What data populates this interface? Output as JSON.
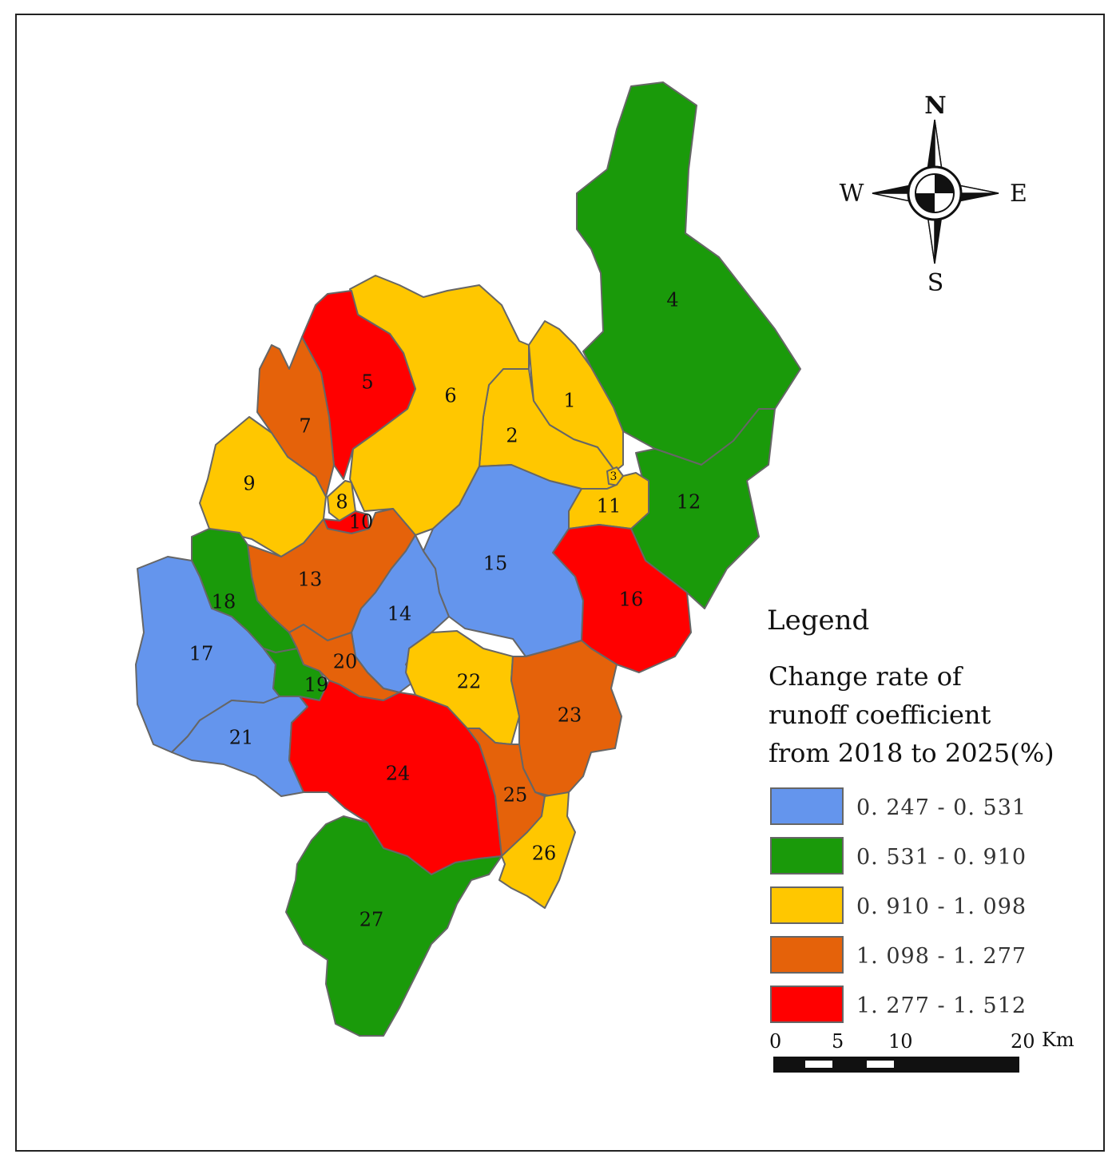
{
  "compass": {
    "north": "N",
    "south": "S",
    "east": "E",
    "west": "W"
  },
  "regions": [
    {
      "id": "1",
      "label": "1",
      "class_index": 2
    },
    {
      "id": "2",
      "label": "2",
      "class_index": 2
    },
    {
      "id": "3",
      "label": "3",
      "class_index": 2
    },
    {
      "id": "4",
      "label": "4",
      "class_index": 1
    },
    {
      "id": "5",
      "label": "5",
      "class_index": 4
    },
    {
      "id": "6",
      "label": "6",
      "class_index": 2
    },
    {
      "id": "7",
      "label": "7",
      "class_index": 3
    },
    {
      "id": "8",
      "label": "8",
      "class_index": 2
    },
    {
      "id": "9",
      "label": "9",
      "class_index": 2
    },
    {
      "id": "10",
      "label": "10",
      "class_index": 4
    },
    {
      "id": "11",
      "label": "11",
      "class_index": 2
    },
    {
      "id": "12",
      "label": "12",
      "class_index": 1
    },
    {
      "id": "13",
      "label": "13",
      "class_index": 3
    },
    {
      "id": "14",
      "label": "14",
      "class_index": 0
    },
    {
      "id": "15",
      "label": "15",
      "class_index": 0
    },
    {
      "id": "16",
      "label": "16",
      "class_index": 4
    },
    {
      "id": "17",
      "label": "17",
      "class_index": 0
    },
    {
      "id": "18",
      "label": "18",
      "class_index": 1
    },
    {
      "id": "19",
      "label": "19",
      "class_index": 1
    },
    {
      "id": "20",
      "label": "20",
      "class_index": 3
    },
    {
      "id": "21",
      "label": "21",
      "class_index": 0
    },
    {
      "id": "22",
      "label": "22",
      "class_index": 2
    },
    {
      "id": "23",
      "label": "23",
      "class_index": 3
    },
    {
      "id": "24",
      "label": "24",
      "class_index": 4
    },
    {
      "id": "25",
      "label": "25",
      "class_index": 3
    },
    {
      "id": "26",
      "label": "26",
      "class_index": 2
    },
    {
      "id": "27",
      "label": "27",
      "class_index": 1
    }
  ],
  "legend": {
    "title": "Legend",
    "subtitle_lines": [
      "Change rate of",
      "runoff coefficient",
      "from 2018 to 2025(%)"
    ],
    "classes": [
      {
        "range": "0. 247 - 0. 531",
        "color": "#6495ed"
      },
      {
        "range": "0. 531 - 0. 910",
        "color": "#1a9a0a"
      },
      {
        "range": "0. 910 - 1. 098",
        "color": "#ffc700"
      },
      {
        "range": "1. 098 - 1. 277",
        "color": "#e5620a"
      },
      {
        "range": "1. 277 - 1. 512",
        "color": "#ff0000"
      }
    ]
  },
  "scale_bar": {
    "ticks": [
      "0",
      "5",
      "10",
      "20"
    ],
    "unit": "Km"
  }
}
